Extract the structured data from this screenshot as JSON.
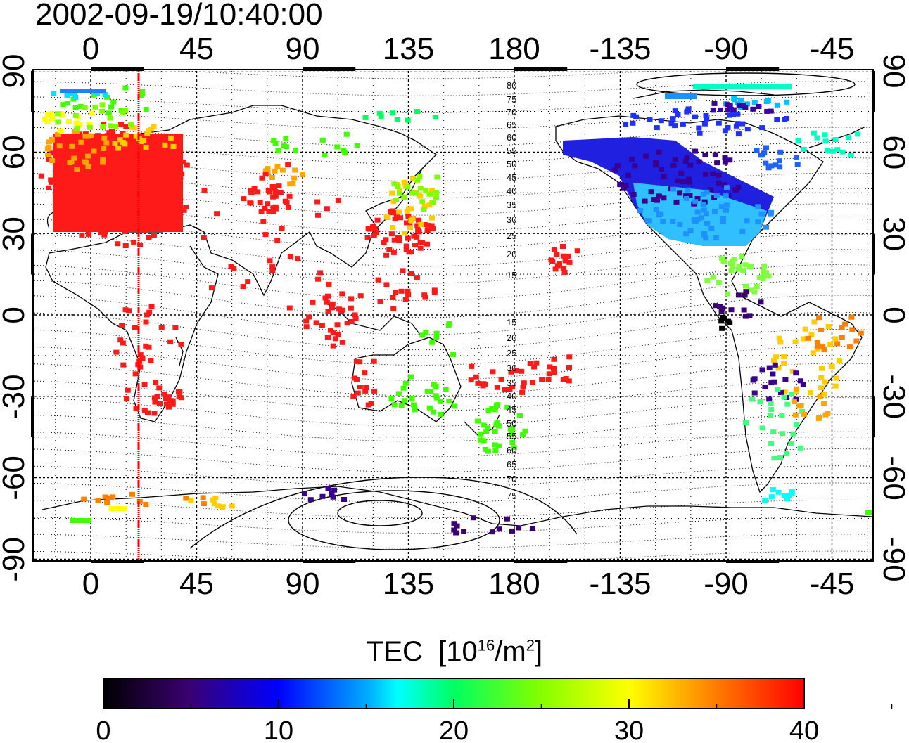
{
  "title": "2002-09-19/10:40:00",
  "map": {
    "lon_ticks_top": [
      "0",
      "45",
      "90",
      "135",
      "180",
      "-135",
      "-90",
      "-45"
    ],
    "lon_ticks_bottom": [
      "0",
      "45",
      "90",
      "135",
      "180",
      "-135",
      "-90",
      "-45"
    ],
    "lat_ticks_left": [
      "90",
      "60",
      "30",
      "0",
      "-30",
      "-60",
      "-90"
    ],
    "lat_ticks_right": [
      "90",
      "60",
      "30",
      "0",
      "-30",
      "-60",
      "-90"
    ],
    "contour_labels": [
      "80",
      "75",
      "70",
      "65",
      "60",
      "55",
      "50",
      "45",
      "40",
      "35",
      "30",
      "25",
      "20",
      "15",
      "15",
      "20",
      "25",
      "30",
      "35",
      "40",
      "45",
      "50",
      "55",
      "60",
      "65",
      "70",
      "75"
    ],
    "marker_color": "#ff0000",
    "coastline_color": "#000000"
  },
  "colorbar": {
    "title_text": "TEC",
    "title_unit_prefix": "[10",
    "title_unit_exp": "16",
    "title_unit_mid": "/m",
    "title_unit_exp2": "2",
    "title_unit_suffix": "]",
    "ticks": [
      "0",
      "10",
      "20",
      "30",
      "40"
    ],
    "range": [
      0,
      40
    ],
    "colors": [
      "#000000",
      "#3a0070",
      "#0000ff",
      "#00c8ff",
      "#00ff00",
      "#ffff00",
      "#ff8000",
      "#ff0000"
    ]
  }
}
